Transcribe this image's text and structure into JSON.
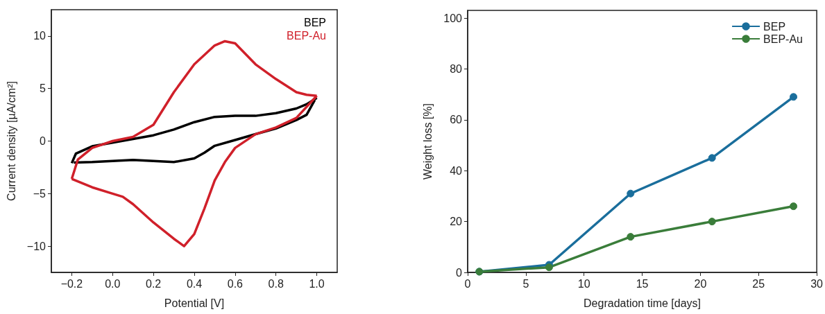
{
  "chart_data": [
    {
      "type": "line",
      "xlabel": "Potential [V]",
      "ylabel": "Current density [µA/cm²]",
      "xlim": [
        -0.3,
        1.1
      ],
      "ylim": [
        -12.5,
        12.5
      ],
      "xticks": [
        -0.2,
        {
          "value": 0,
          "label": "0.0"
        },
        0.2,
        0.4,
        0.6,
        0.8,
        {
          "value": 1,
          "label": "1.0"
        }
      ],
      "yticks": [
        -10,
        -5,
        0,
        5,
        10
      ],
      "legend": false,
      "marker": "none",
      "series": [
        {
          "name": "BEP",
          "color": "#000000",
          "x": [
            -0.2,
            -0.18,
            -0.1,
            0.0,
            0.1,
            0.2,
            0.3,
            0.4,
            0.5,
            0.6,
            0.7,
            0.8,
            0.9,
            0.95,
            1.0
          ],
          "values": [
            -2.1,
            -1.2,
            -0.5,
            -0.15,
            0.2,
            0.55,
            1.1,
            1.8,
            2.3,
            2.4,
            2.4,
            2.65,
            3.1,
            3.5,
            4.1
          ]
        },
        {
          "color": "#000000",
          "x": [
            -0.19,
            -0.1,
            0.0,
            0.1,
            0.2,
            0.3,
            0.4,
            0.45,
            0.5,
            0.6,
            0.7,
            0.8,
            0.9,
            0.95,
            0.99
          ],
          "values": [
            -2.05,
            -2.0,
            -1.9,
            -1.8,
            -1.9,
            -2.0,
            -1.65,
            -1.1,
            -0.45,
            0.1,
            0.66,
            1.2,
            2.0,
            2.5,
            3.9
          ]
        },
        {
          "name": "BEP-Au",
          "color": "#d0202a",
          "x": [
            -0.2,
            -0.17,
            -0.1,
            0.0,
            0.1,
            0.2,
            0.3,
            0.4,
            0.5,
            0.55,
            0.6,
            0.7,
            0.8,
            0.9,
            0.95,
            1.0
          ],
          "values": [
            -3.6,
            -1.75,
            -0.65,
            0.0,
            0.4,
            1.55,
            4.65,
            7.3,
            9.1,
            9.5,
            9.3,
            7.3,
            5.9,
            4.65,
            4.4,
            4.3
          ]
        },
        {
          "color": "#d0202a",
          "x": [
            -0.2,
            -0.1,
            0.0,
            0.05,
            0.1,
            0.2,
            0.3,
            0.35,
            0.4,
            0.45,
            0.5,
            0.55,
            0.6,
            0.7,
            0.8,
            0.9,
            1.0
          ],
          "values": [
            -3.6,
            -4.4,
            -5.0,
            -5.3,
            -6.0,
            -7.75,
            -9.3,
            -10.0,
            -8.85,
            -6.4,
            -3.75,
            -2.0,
            -0.65,
            0.65,
            1.3,
            2.2,
            4.3
          ]
        }
      ]
    },
    {
      "type": "line",
      "xlabel": "Degradation time [days]",
      "ylabel": "Weight loss [%]",
      "xlim": [
        0,
        30
      ],
      "ylim": [
        0,
        103
      ],
      "xticks": [
        0,
        5,
        10,
        15,
        20,
        25,
        30
      ],
      "yticks": [
        0,
        20,
        40,
        60,
        80,
        100
      ],
      "legend": "top right",
      "marker": "circle",
      "x": [
        1,
        7,
        14,
        21,
        28
      ],
      "series": [
        {
          "name": "BEP",
          "color": "#1a6e9c",
          "values": [
            0.3,
            3,
            31,
            45,
            69
          ]
        },
        {
          "name": "BEP-Au",
          "color": "#3a7d3a",
          "values": [
            0.3,
            2,
            14,
            20,
            26
          ]
        }
      ]
    }
  ]
}
